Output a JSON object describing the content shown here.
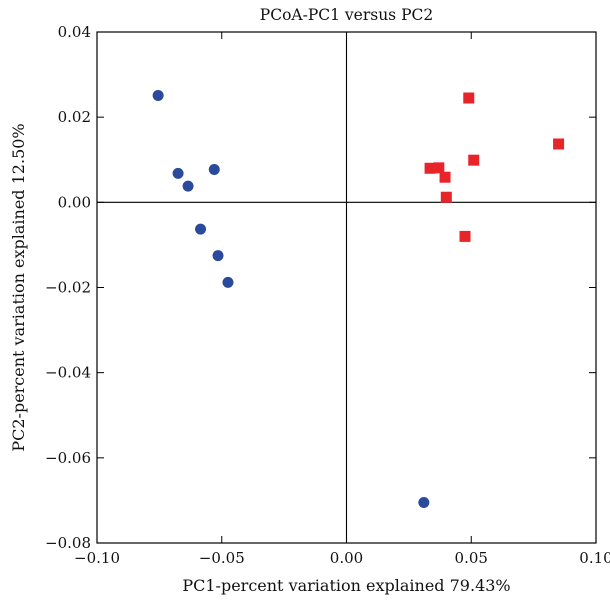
{
  "chart_data": {
    "type": "scatter",
    "title": "PCoA-PC1 versus PC2",
    "xlabel": "PC1-percent variation explained 79.43%",
    "ylabel": "PC2-percent variation explained 12.50%",
    "xlim": [
      -0.1,
      0.1
    ],
    "ylim": [
      -0.08,
      0.04
    ],
    "xticks": [
      -0.1,
      -0.05,
      0.0,
      0.05,
      0.1
    ],
    "xtick_labels": [
      "−0.10",
      "−0.05",
      "0.00",
      "0.05",
      "0.10"
    ],
    "yticks": [
      0.04,
      0.02,
      0.0,
      -0.02,
      -0.04,
      -0.06,
      -0.08
    ],
    "ytick_labels": [
      "0.04",
      "0.02",
      "0.00",
      "−0.02",
      "−0.04",
      "−0.06",
      "−0.08"
    ],
    "grid": false,
    "zero_lines": true,
    "series": [
      {
        "marker": "circle",
        "color": "#2b4a9c",
        "points": [
          [
            -0.0755,
            0.0251
          ],
          [
            -0.0675,
            0.0068
          ],
          [
            -0.0635,
            0.0038
          ],
          [
            -0.053,
            0.0077
          ],
          [
            -0.0585,
            -0.0063
          ],
          [
            -0.0515,
            -0.0125
          ],
          [
            -0.0475,
            -0.0188
          ],
          [
            0.031,
            -0.0705
          ]
        ]
      },
      {
        "marker": "square",
        "color": "#e8242b",
        "points": [
          [
            0.049,
            0.0245
          ],
          [
            0.085,
            0.0137
          ],
          [
            0.051,
            0.0099
          ],
          [
            0.0335,
            0.008
          ],
          [
            0.037,
            0.0081
          ],
          [
            0.0395,
            0.0059
          ],
          [
            0.04,
            0.0012
          ],
          [
            0.0475,
            -0.008
          ]
        ]
      }
    ]
  }
}
